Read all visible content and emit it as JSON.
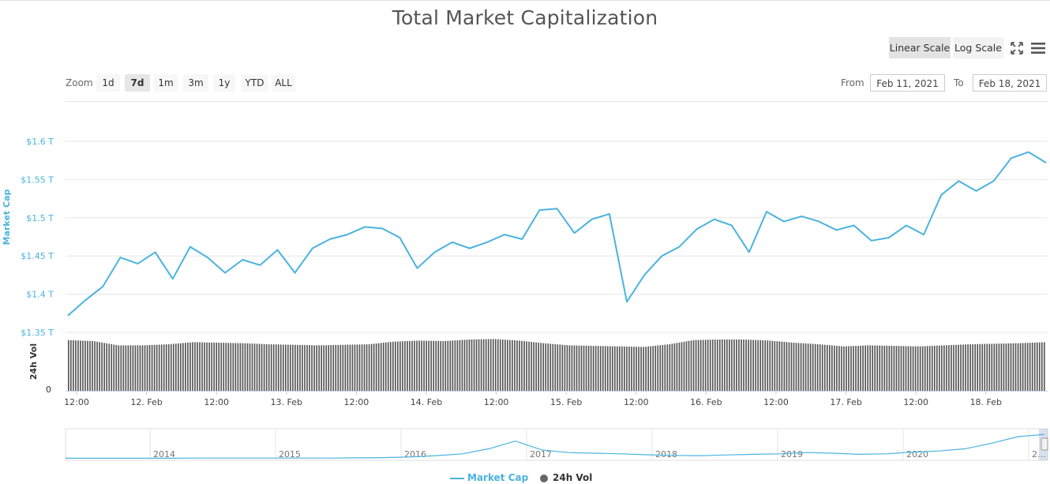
{
  "title": "Total Market Capitalization",
  "scale_buttons": [
    {
      "label": "Linear Scale",
      "active": true
    },
    {
      "label": "Log Scale",
      "active": false
    }
  ],
  "icons": {
    "fullscreen": "fullscreen-icon",
    "menu": "hamburger-menu-icon"
  },
  "zoom": {
    "label": "Zoom",
    "options": [
      {
        "label": "1d",
        "active": false
      },
      {
        "label": "7d",
        "active": true
      },
      {
        "label": "1m",
        "active": false
      },
      {
        "label": "3m",
        "active": false
      },
      {
        "label": "1y",
        "active": false
      },
      {
        "label": "YTD",
        "active": false
      },
      {
        "label": "ALL",
        "active": false
      }
    ]
  },
  "range": {
    "from_label": "From",
    "from_value": "Feb 11, 2021",
    "to_label": "To",
    "to_value": "Feb 18, 2021"
  },
  "colors": {
    "line": "#4ab3de",
    "axis_text": "#4ab3de",
    "volume": "#555555",
    "grid": "#e6e6e6",
    "navigator_line": "#4ab3de"
  },
  "legend": [
    {
      "label": "Market Cap",
      "marker": "line",
      "color": "#4ab3de"
    },
    {
      "label": "24h Vol",
      "marker": "circle",
      "color": "#666666"
    }
  ],
  "chart_data": {
    "type": "line",
    "ylabel": "Market Cap",
    "y_ticks": [
      "$1.35 T",
      "$1.4 T",
      "$1.45 T",
      "$1.5 T",
      "$1.55 T",
      "$1.6 T"
    ],
    "ylim": [
      1.35,
      1.6
    ],
    "x_ticks": [
      "12:00",
      "12. Feb",
      "12:00",
      "13. Feb",
      "12:00",
      "14. Feb",
      "12:00",
      "15. Feb",
      "12:00",
      "16. Feb",
      "12:00",
      "17. Feb",
      "12:00",
      "18. Feb"
    ],
    "grid": true,
    "series": [
      {
        "name": "Market Cap",
        "unit": "T USD",
        "x": [
          "2021-02-11 09:00",
          "2021-02-11 12:00",
          "2021-02-11 15:00",
          "2021-02-11 18:00",
          "2021-02-11 21:00",
          "2021-02-12 00:00",
          "2021-02-12 03:00",
          "2021-02-12 06:00",
          "2021-02-12 09:00",
          "2021-02-12 12:00",
          "2021-02-12 15:00",
          "2021-02-12 18:00",
          "2021-02-12 21:00",
          "2021-02-13 00:00",
          "2021-02-13 03:00",
          "2021-02-13 06:00",
          "2021-02-13 09:00",
          "2021-02-13 12:00",
          "2021-02-13 15:00",
          "2021-02-13 18:00",
          "2021-02-13 21:00",
          "2021-02-14 00:00",
          "2021-02-14 03:00",
          "2021-02-14 06:00",
          "2021-02-14 09:00",
          "2021-02-14 12:00",
          "2021-02-14 15:00",
          "2021-02-14 18:00",
          "2021-02-14 21:00",
          "2021-02-15 00:00",
          "2021-02-15 03:00",
          "2021-02-15 06:00",
          "2021-02-15 09:00",
          "2021-02-15 12:00",
          "2021-02-15 15:00",
          "2021-02-15 18:00",
          "2021-02-15 21:00",
          "2021-02-16 00:00",
          "2021-02-16 03:00",
          "2021-02-16 06:00",
          "2021-02-16 09:00",
          "2021-02-16 12:00",
          "2021-02-16 15:00",
          "2021-02-16 18:00",
          "2021-02-16 21:00",
          "2021-02-17 00:00",
          "2021-02-17 03:00",
          "2021-02-17 06:00",
          "2021-02-17 09:00",
          "2021-02-17 12:00",
          "2021-02-17 15:00",
          "2021-02-17 18:00",
          "2021-02-17 21:00",
          "2021-02-18 00:00",
          "2021-02-18 03:00",
          "2021-02-18 06:00",
          "2021-02-18 09:00"
        ],
        "values": [
          1.372,
          1.392,
          1.41,
          1.448,
          1.44,
          1.455,
          1.42,
          1.462,
          1.448,
          1.428,
          1.445,
          1.438,
          1.458,
          1.428,
          1.46,
          1.472,
          1.478,
          1.488,
          1.486,
          1.474,
          1.434,
          1.455,
          1.468,
          1.46,
          1.468,
          1.478,
          1.472,
          1.51,
          1.512,
          1.48,
          1.498,
          1.505,
          1.39,
          1.425,
          1.45,
          1.462,
          1.485,
          1.498,
          1.49,
          1.455,
          1.508,
          1.495,
          1.502,
          1.495,
          1.484,
          1.49,
          1.47,
          1.474,
          1.49,
          1.478,
          1.53,
          1.548,
          1.535,
          1.548,
          1.578,
          1.586,
          1.572
        ]
      },
      {
        "name": "24h Vol",
        "values": [
          0.96,
          0.94,
          0.86,
          0.86,
          0.88,
          0.92,
          0.91,
          0.9,
          0.88,
          0.87,
          0.86,
          0.87,
          0.88,
          0.93,
          0.95,
          0.94,
          0.97,
          0.98,
          0.95,
          0.9,
          0.86,
          0.85,
          0.84,
          0.83,
          0.88,
          0.96,
          0.97,
          0.97,
          0.95,
          0.91,
          0.88,
          0.84,
          0.86,
          0.85,
          0.84,
          0.86,
          0.88,
          0.89,
          0.9,
          0.92
        ]
      }
    ]
  },
  "volume_axis": {
    "label": "24h Vol",
    "zero_tick": "0"
  },
  "navigator": {
    "years": [
      "2014",
      "2015",
      "2016",
      "2017",
      "2018",
      "2019",
      "2020",
      "2..."
    ],
    "values": [
      0.02,
      0.02,
      0.02,
      0.02,
      0.02,
      0.03,
      0.03,
      0.03,
      0.03,
      0.03,
      0.03,
      0.04,
      0.05,
      0.08,
      0.14,
      0.22,
      0.45,
      0.8,
      0.4,
      0.28,
      0.25,
      0.22,
      0.18,
      0.15,
      0.14,
      0.17,
      0.2,
      0.22,
      0.28,
      0.25,
      0.2,
      0.22,
      0.3,
      0.35,
      0.45,
      0.7,
      1.0,
      1.1
    ]
  }
}
